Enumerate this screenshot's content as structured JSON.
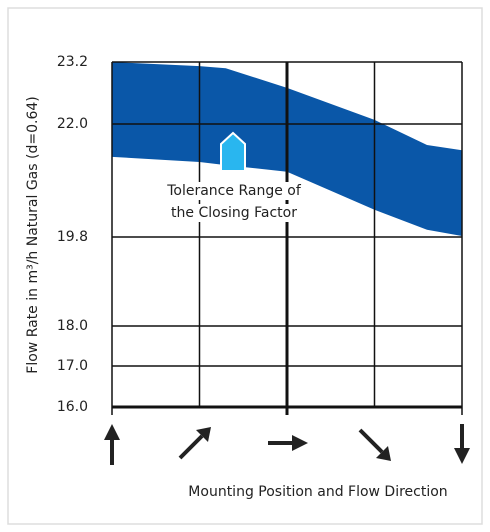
{
  "chart_data": {
    "type": "range-area",
    "y_label": "Flow Rate in m³/h Natural Gas (d=0.64)",
    "x_label": "Mounting Position and Flow Direction",
    "annotation": [
      "Tolerance Range of",
      "the Closing Factor"
    ],
    "x": [
      0,
      1,
      1.3,
      2,
      3,
      3.6,
      4
    ],
    "series": [
      {
        "name": "upper",
        "values": [
          23.2,
          23.12,
          23.08,
          22.7,
          22.08,
          21.59,
          21.49
        ]
      },
      {
        "name": "lower",
        "values": [
          21.36,
          21.26,
          21.2,
          21.07,
          20.33,
          19.94,
          19.82
        ]
      }
    ],
    "color": "#0a57a8",
    "xlim": [
      0,
      4
    ],
    "xticks": [
      0,
      1,
      2,
      3,
      4
    ],
    "ylim": [
      16.0,
      23.2
    ],
    "yticks": [
      {
        "value": 23.2,
        "label": "23.2"
      },
      {
        "value": 22.0,
        "label": "22.0"
      },
      {
        "value": 19.8,
        "label": "19.8"
      },
      {
        "value": 18.0,
        "label": "18.0"
      },
      {
        "value": 17.0,
        "label": "17.0"
      },
      {
        "value": 16.0,
        "label": "16.0"
      }
    ],
    "grid": true
  }
}
